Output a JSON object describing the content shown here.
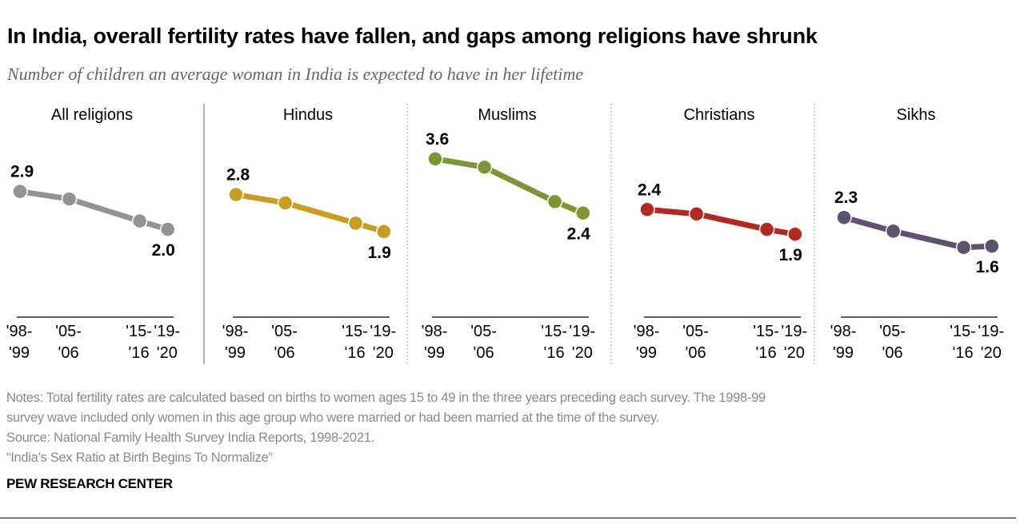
{
  "title": "In India, overall fertility rates have fallen, and gaps among religions have shrunk",
  "subtitle": "Number of children an average woman in India is expected to have in her lifetime",
  "notes": [
    "Notes: Total fertility rates are calculated based on births to women ages 15 to 49 in the three years preceding each survey. The 1998-99",
    "survey wave included only women in this age group who were married or had been married at the time of the survey.",
    "Source: National Family Health Survey India Reports, 1998-2021.",
    "“India’s Sex Ratio at Birth Begins To Normalize”"
  ],
  "brand": "PEW RESEARCH CENTER",
  "chart_data": {
    "type": "line",
    "layout": "small-multiples",
    "x": [
      "'98-'99",
      "'05-'06",
      "'15-'16",
      "'19-'20"
    ],
    "x_midyears": [
      1998.5,
      2005.5,
      2015.5,
      2019.5
    ],
    "x_tick_lines": [
      [
        "'98-",
        "'99"
      ],
      [
        "'05-",
        "'06"
      ],
      [
        "'15-",
        "'16"
      ],
      [
        "'19-",
        "'20"
      ]
    ],
    "ylim": [
      0,
      4
    ],
    "grid": false,
    "data_labels": "first and last points",
    "panels": [
      {
        "name": "All religions",
        "color": "#939393",
        "values": [
          2.85,
          2.68,
          2.18,
          1.99
        ],
        "first_label": "2.9",
        "last_label": "2.0"
      },
      {
        "name": "Hindus",
        "color": "#C89D22",
        "values": [
          2.78,
          2.59,
          2.13,
          1.94
        ],
        "first_label": "2.8",
        "last_label": "1.9"
      },
      {
        "name": "Muslims",
        "color": "#7D9532",
        "values": [
          3.59,
          3.4,
          2.62,
          2.36
        ],
        "first_label": "3.6",
        "last_label": "2.4"
      },
      {
        "name": "Christians",
        "color": "#B2291F",
        "values": [
          2.44,
          2.34,
          1.99,
          1.88
        ],
        "first_label": "2.4",
        "last_label": "1.9"
      },
      {
        "name": "Sikhs",
        "color": "#5E5270",
        "values": [
          2.26,
          1.95,
          1.58,
          1.61
        ],
        "first_label": "2.3",
        "last_label": "1.6"
      }
    ]
  }
}
